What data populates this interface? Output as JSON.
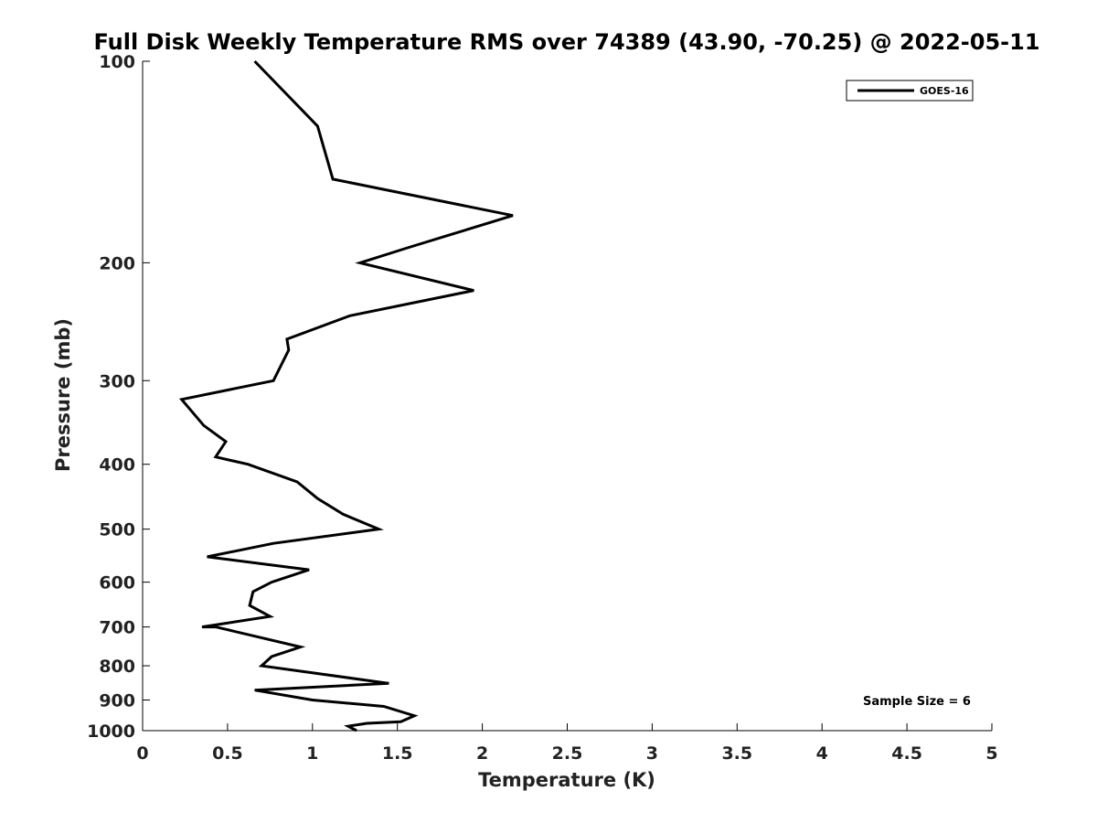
{
  "chart_data": {
    "type": "line",
    "title": "Full Disk Weekly Temperature RMS over 74389 (43.90, -70.25) @ 2022-05-11",
    "xlabel": "Temperature (K)",
    "ylabel": "Pressure (mb)",
    "xlim": [
      0,
      5
    ],
    "ylim": [
      100,
      1000
    ],
    "y_scale": "log",
    "y_reversed": true,
    "x_ticks": [
      "0",
      "0.5",
      "1",
      "1.5",
      "2",
      "2.5",
      "3",
      "3.5",
      "4",
      "4.5",
      "5"
    ],
    "y_ticks": [
      "100",
      "200",
      "300",
      "400",
      "500",
      "600",
      "700",
      "800",
      "900",
      "1000"
    ],
    "grid": false,
    "legend": {
      "position": "top-right",
      "entries": [
        "GOES-16"
      ]
    },
    "annotation": "Sample Size = 6",
    "line_color": "#000000",
    "series": [
      {
        "name": "GOES-16",
        "x": [
          0.66,
          1.03,
          1.12,
          2.18,
          1.56,
          1.28,
          1.95,
          1.22,
          0.85,
          0.86,
          0.77,
          0.23,
          0.36,
          0.49,
          0.43,
          0.62,
          0.91,
          1.03,
          1.18,
          1.39,
          0.77,
          0.38,
          0.98,
          0.76,
          0.65,
          0.63,
          0.75,
          0.35,
          0.43,
          0.93,
          0.76,
          0.7,
          1.45,
          0.66,
          1.0,
          1.42,
          1.6,
          1.52,
          1.32,
          1.21,
          1.26
        ],
        "y": [
          100,
          125,
          150,
          170,
          190,
          200,
          220,
          240,
          260,
          270,
          300,
          320,
          350,
          370,
          390,
          400,
          425,
          450,
          475,
          500,
          525,
          550,
          575,
          600,
          620,
          650,
          675,
          700,
          700,
          750,
          775,
          800,
          850,
          870,
          900,
          920,
          950,
          970,
          975,
          985,
          1000
        ]
      }
    ]
  }
}
